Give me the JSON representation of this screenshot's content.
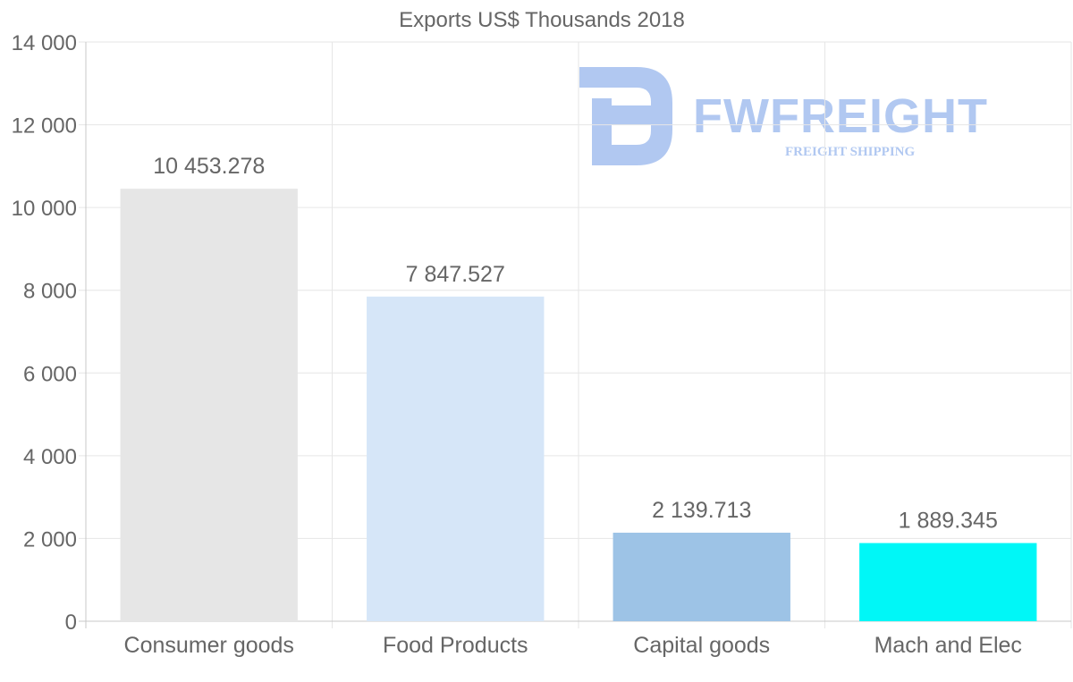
{
  "watermark": {
    "brand": "FWFREIGHT",
    "tagline": "FREIGHT SHIPPING",
    "color": "#a9c3f0"
  },
  "chart_data": {
    "type": "bar",
    "title": "Exports US$ Thousands 2018",
    "xlabel": "",
    "ylabel": "",
    "categories": [
      "Consumer goods",
      "Food Products",
      "Capital goods",
      "Mach and Elec"
    ],
    "values": [
      10453.278,
      7847.527,
      2139.713,
      1889.345
    ],
    "data_labels": [
      "10 453.278",
      "7 847.527",
      "2 139.713",
      "1 889.345"
    ],
    "bar_colors": [
      "#e6e6e6",
      "#d6e6f8",
      "#9dc3e6",
      "#00f7f7"
    ],
    "ylim": [
      0,
      14000
    ],
    "yticks": [
      0,
      2000,
      4000,
      6000,
      8000,
      10000,
      12000,
      14000
    ],
    "ytick_labels": [
      "0",
      "2 000",
      "4 000",
      "6 000",
      "8 000",
      "10 000",
      "12 000",
      "14 000"
    ],
    "grid": true,
    "legend": "none"
  }
}
